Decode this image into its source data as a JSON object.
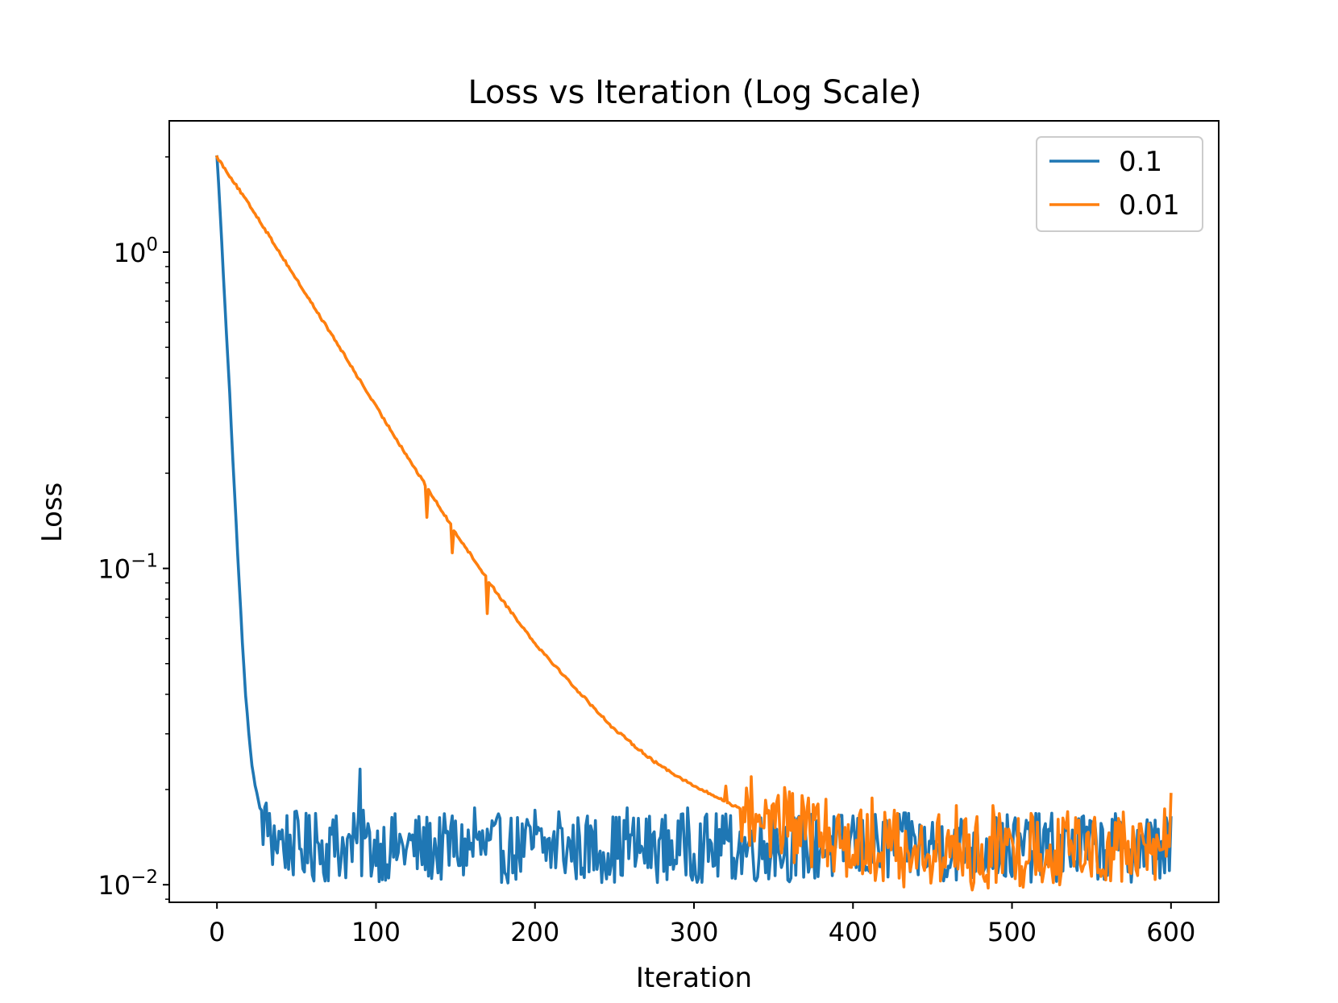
{
  "chart_data": {
    "type": "line",
    "title": "Loss vs Iteration (Log Scale)",
    "xlabel": "Iteration",
    "ylabel": "Loss",
    "xlim": [
      -30,
      630
    ],
    "ylim": [
      0.0088,
      2.6
    ],
    "yscale": "log",
    "grid": false,
    "legend_position": "top-right",
    "x_ticks": [
      0,
      100,
      200,
      300,
      400,
      500,
      600
    ],
    "x_tick_labels": [
      "0",
      "100",
      "200",
      "300",
      "400",
      "500",
      "600"
    ],
    "y_ticks": [
      0.01,
      0.1,
      1
    ],
    "y_tick_labels": [
      {
        "base": "10",
        "exp": "−2"
      },
      {
        "base": "10",
        "exp": "−1"
      },
      {
        "base": "10",
        "exp": "0"
      }
    ],
    "series": [
      {
        "name": "0.1",
        "color": "#1f77b4",
        "keypoints": [
          [
            0,
            2.0
          ],
          [
            2,
            1.35
          ],
          [
            4,
            0.85
          ],
          [
            6,
            0.55
          ],
          [
            8,
            0.36
          ],
          [
            10,
            0.22
          ],
          [
            12,
            0.14
          ],
          [
            14,
            0.09
          ],
          [
            16,
            0.058
          ],
          [
            18,
            0.04
          ],
          [
            20,
            0.03
          ],
          [
            22,
            0.024
          ],
          [
            24,
            0.0205
          ],
          [
            26,
            0.0185
          ],
          [
            28,
            0.0165
          ],
          [
            30,
            0.015
          ],
          [
            35,
            0.0142
          ],
          [
            40,
            0.0138
          ],
          [
            50,
            0.0133
          ],
          [
            60,
            0.013
          ],
          [
            90,
            0.0132
          ],
          [
            150,
            0.013
          ],
          [
            300,
            0.0131
          ],
          [
            450,
            0.0131
          ],
          [
            600,
            0.0131
          ]
        ],
        "spikes": [
          [
            28,
            0.0172
          ],
          [
            33,
            0.0168
          ],
          [
            62,
            0.0168
          ],
          [
            75,
            0.0165
          ],
          [
            90,
            0.0232
          ],
          [
            92,
            0.0172
          ],
          [
            148,
            0.0165
          ],
          [
            162,
            0.0175
          ],
          [
            200,
            0.0172
          ],
          [
            215,
            0.017
          ],
          [
            258,
            0.0175
          ],
          [
            296,
            0.0175
          ],
          [
            318,
            0.0165
          ],
          [
            350,
            0.016
          ],
          [
            400,
            0.0165
          ],
          [
            435,
            0.0168
          ],
          [
            490,
            0.0163
          ],
          [
            545,
            0.0165
          ],
          [
            590,
            0.016
          ]
        ],
        "noise_amplitude": 0.11,
        "noise_start": 28
      },
      {
        "name": "0.01",
        "color": "#ff7f0e",
        "keypoints": [
          [
            0,
            2.0
          ],
          [
            25,
            1.3
          ],
          [
            50,
            0.82
          ],
          [
            75,
            0.52
          ],
          [
            100,
            0.325
          ],
          [
            125,
            0.205
          ],
          [
            150,
            0.13
          ],
          [
            175,
            0.085
          ],
          [
            200,
            0.058
          ],
          [
            225,
            0.042
          ],
          [
            250,
            0.031
          ],
          [
            275,
            0.0245
          ],
          [
            300,
            0.0205
          ],
          [
            325,
            0.0178
          ],
          [
            350,
            0.0158
          ],
          [
            375,
            0.0145
          ],
          [
            400,
            0.0136
          ],
          [
            425,
            0.013
          ],
          [
            450,
            0.0127
          ],
          [
            475,
            0.0126
          ],
          [
            500,
            0.0128
          ],
          [
            525,
            0.013
          ],
          [
            550,
            0.0131
          ],
          [
            575,
            0.013
          ],
          [
            590,
            0.0128
          ],
          [
            600,
            0.015
          ]
        ],
        "spikes": [
          [
            132,
            0.145
          ],
          [
            148,
            0.112
          ],
          [
            170,
            0.072
          ],
          [
            320,
            0.0205
          ],
          [
            345,
            0.0185
          ],
          [
            358,
            0.0183
          ],
          [
            372,
            0.0188
          ],
          [
            412,
            0.0188
          ],
          [
            426,
            0.0172
          ],
          [
            465,
            0.0178
          ],
          [
            488,
            0.0178
          ],
          [
            512,
            0.0168
          ],
          [
            540,
            0.0163
          ],
          [
            567,
            0.0162
          ]
        ],
        "noise_amplitude": 0.12,
        "noise_start": 330
      }
    ]
  }
}
